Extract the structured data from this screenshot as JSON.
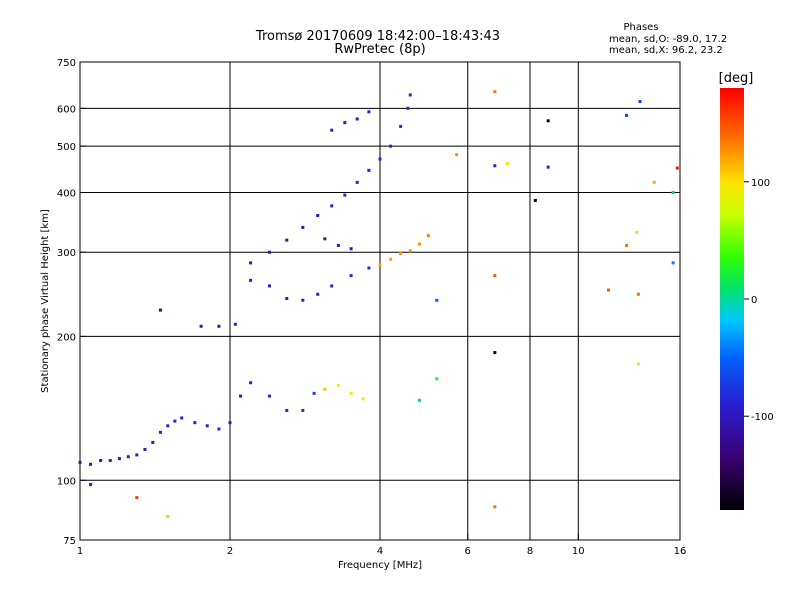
{
  "chart_data": {
    "type": "scatter",
    "title": "Tromsø 20170609 18:42:00–18:43:43",
    "subtitle": "RwPretec (8p)",
    "xlabel": "Frequency [MHz]",
    "ylabel": "Stationary phase Virtual Height [km]",
    "xscale": "log",
    "yscale": "log",
    "xlim": [
      1,
      16
    ],
    "ylim": [
      75,
      750
    ],
    "xticks": [
      1,
      2,
      4,
      6,
      8,
      10,
      16
    ],
    "xtick_labels": [
      "1",
      "2",
      "4",
      "6",
      "8",
      "10",
      "16"
    ],
    "xgrid": [
      2,
      4,
      6,
      8,
      10
    ],
    "yticks": [
      75,
      100,
      200,
      300,
      400,
      500,
      600,
      750
    ],
    "ytick_labels": [
      "75",
      "100",
      "200",
      "300",
      "400",
      "500",
      "600",
      "750"
    ],
    "ygrid": [
      100,
      200,
      300,
      400,
      500,
      600
    ],
    "grid": true,
    "stats": {
      "heading": "Phases",
      "line_o": "mean, sd,O:  -89.0, 17.2",
      "line_x": "mean, sd,X:   96.2, 23.2"
    },
    "colorbar": {
      "label": "[deg]",
      "range": [
        -180,
        180
      ],
      "ticks": [
        100,
        0,
        -100
      ],
      "tick_labels": [
        "100",
        "0",
        "-100"
      ]
    },
    "series": [
      {
        "name": "traces",
        "points": [
          {
            "f": 1.0,
            "h": 109,
            "p": -110
          },
          {
            "f": 1.05,
            "h": 108,
            "p": -112
          },
          {
            "f": 1.1,
            "h": 110,
            "p": -110
          },
          {
            "f": 1.15,
            "h": 110,
            "p": -108
          },
          {
            "f": 1.2,
            "h": 111,
            "p": -110
          },
          {
            "f": 1.25,
            "h": 112,
            "p": -108
          },
          {
            "f": 1.3,
            "h": 113,
            "p": -106
          },
          {
            "f": 1.35,
            "h": 116,
            "p": -105
          },
          {
            "f": 1.4,
            "h": 120,
            "p": -104
          },
          {
            "f": 1.45,
            "h": 126,
            "p": -102
          },
          {
            "f": 1.5,
            "h": 130,
            "p": -100
          },
          {
            "f": 1.55,
            "h": 133,
            "p": -98
          },
          {
            "f": 1.6,
            "h": 135,
            "p": -100
          },
          {
            "f": 1.7,
            "h": 132,
            "p": -100
          },
          {
            "f": 1.8,
            "h": 130,
            "p": -102
          },
          {
            "f": 1.9,
            "h": 128,
            "p": -100
          },
          {
            "f": 2.0,
            "h": 132,
            "p": -102
          },
          {
            "f": 2.1,
            "h": 150,
            "p": -105
          },
          {
            "f": 2.2,
            "h": 160,
            "p": -100
          },
          {
            "f": 2.4,
            "h": 150,
            "p": -98
          },
          {
            "f": 2.6,
            "h": 140,
            "p": -95
          },
          {
            "f": 2.8,
            "h": 140,
            "p": -92
          },
          {
            "f": 2.95,
            "h": 152,
            "p": -85
          },
          {
            "f": 3.1,
            "h": 155,
            "p": 110
          },
          {
            "f": 3.3,
            "h": 158,
            "p": 100
          },
          {
            "f": 3.5,
            "h": 152,
            "p": 95
          },
          {
            "f": 3.7,
            "h": 148,
            "p": 95
          },
          {
            "f": 1.75,
            "h": 210,
            "p": -110
          },
          {
            "f": 1.9,
            "h": 210,
            "p": -108
          },
          {
            "f": 2.05,
            "h": 212,
            "p": -105
          },
          {
            "f": 2.2,
            "h": 262,
            "p": -110
          },
          {
            "f": 2.4,
            "h": 255,
            "p": -108
          },
          {
            "f": 2.6,
            "h": 240,
            "p": -105
          },
          {
            "f": 2.8,
            "h": 238,
            "p": -102
          },
          {
            "f": 3.0,
            "h": 245,
            "p": -100
          },
          {
            "f": 3.2,
            "h": 255,
            "p": -100
          },
          {
            "f": 3.5,
            "h": 268,
            "p": -95
          },
          {
            "f": 3.8,
            "h": 278,
            "p": -90
          },
          {
            "f": 4.0,
            "h": 282,
            "p": 120
          },
          {
            "f": 4.2,
            "h": 290,
            "p": 120
          },
          {
            "f": 4.4,
            "h": 298,
            "p": 125
          },
          {
            "f": 4.6,
            "h": 302,
            "p": 128
          },
          {
            "f": 4.8,
            "h": 312,
            "p": 130
          },
          {
            "f": 5.0,
            "h": 325,
            "p": 135
          },
          {
            "f": 2.2,
            "h": 285,
            "p": -115
          },
          {
            "f": 2.4,
            "h": 300,
            "p": -112
          },
          {
            "f": 2.6,
            "h": 318,
            "p": -110
          },
          {
            "f": 2.8,
            "h": 338,
            "p": -108
          },
          {
            "f": 3.0,
            "h": 358,
            "p": -106
          },
          {
            "f": 3.2,
            "h": 375,
            "p": -104
          },
          {
            "f": 3.4,
            "h": 395,
            "p": -102
          },
          {
            "f": 3.6,
            "h": 420,
            "p": -100
          },
          {
            "f": 3.8,
            "h": 445,
            "p": -100
          },
          {
            "f": 4.0,
            "h": 470,
            "p": -98
          },
          {
            "f": 4.2,
            "h": 500,
            "p": -96
          },
          {
            "f": 4.4,
            "h": 550,
            "p": -95
          },
          {
            "f": 4.55,
            "h": 600,
            "p": -95
          },
          {
            "f": 4.6,
            "h": 640,
            "p": -95
          },
          {
            "f": 3.2,
            "h": 540,
            "p": -110
          },
          {
            "f": 3.4,
            "h": 560,
            "p": -112
          },
          {
            "f": 3.6,
            "h": 570,
            "p": -110
          },
          {
            "f": 3.8,
            "h": 590,
            "p": -108
          },
          {
            "f": 3.1,
            "h": 320,
            "p": -112
          },
          {
            "f": 3.3,
            "h": 310,
            "p": -110
          },
          {
            "f": 3.5,
            "h": 305,
            "p": -110
          },
          {
            "f": 6.8,
            "h": 650,
            "p": 140
          },
          {
            "f": 6.8,
            "h": 455,
            "p": -100
          },
          {
            "f": 7.2,
            "h": 460,
            "p": 100
          },
          {
            "f": 8.2,
            "h": 385,
            "p": -170
          },
          {
            "f": 8.7,
            "h": 565,
            "p": -170
          },
          {
            "f": 8.7,
            "h": 452,
            "p": -100
          },
          {
            "f": 12.5,
            "h": 580,
            "p": -80
          },
          {
            "f": 13.3,
            "h": 620,
            "p": -80
          },
          {
            "f": 14.2,
            "h": 420,
            "p": 120
          },
          {
            "f": 15.5,
            "h": 400,
            "p": -10
          },
          {
            "f": 15.8,
            "h": 450,
            "p": 175
          },
          {
            "f": 13.1,
            "h": 330,
            "p": 100
          },
          {
            "f": 12.5,
            "h": 310,
            "p": 140
          },
          {
            "f": 11.5,
            "h": 250,
            "p": 150
          },
          {
            "f": 13.2,
            "h": 245,
            "p": 140
          },
          {
            "f": 15.5,
            "h": 285,
            "p": -50
          },
          {
            "f": 13.2,
            "h": 175,
            "p": 100
          },
          {
            "f": 6.8,
            "h": 185,
            "p": -170
          },
          {
            "f": 6.8,
            "h": 268,
            "p": 150
          },
          {
            "f": 6.8,
            "h": 88,
            "p": 140
          },
          {
            "f": 1.3,
            "h": 92,
            "p": 160
          },
          {
            "f": 1.5,
            "h": 84,
            "p": 60
          },
          {
            "f": 1.05,
            "h": 98,
            "p": -105
          },
          {
            "f": 1.45,
            "h": 227,
            "p": -130
          },
          {
            "f": 5.2,
            "h": 163,
            "p": 20
          },
          {
            "f": 5.2,
            "h": 238,
            "p": -60
          },
          {
            "f": 4.8,
            "h": 147,
            "p": 0
          },
          {
            "f": 5.7,
            "h": 480,
            "p": 130
          }
        ]
      }
    ]
  }
}
